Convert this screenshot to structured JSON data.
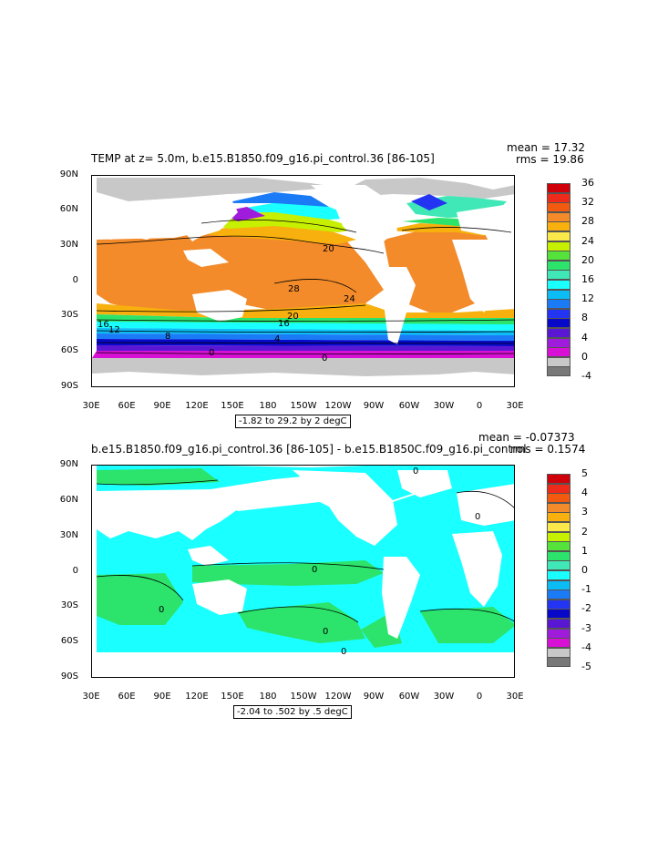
{
  "panels": [
    {
      "id": "top",
      "title": "TEMP at z=    5.0m, b.e15.B1850.f09_g16.pi_control.36 [86-105]",
      "mean_text": "mean = 17.32",
      "rms_text": "rms = 19.86",
      "range_text": "-1.82 to 29.2 by 2 degC",
      "lat_labels": [
        "90N",
        "60N",
        "30N",
        "0",
        "30S",
        "60S",
        "90S"
      ],
      "lon_labels": [
        "30E",
        "60E",
        "90E",
        "120E",
        "150E",
        "180",
        "150W",
        "120W",
        "90W",
        "60W",
        "30W",
        "0",
        "30E"
      ],
      "colorbar_labels": [
        "36",
        "32",
        "28",
        "24",
        "20",
        "16",
        "12",
        "8",
        "4",
        "0",
        "-4"
      ],
      "colorbar_colors": [
        "#d0000a",
        "#ee2a1a",
        "#f25a10",
        "#f38b2a",
        "#f7b00d",
        "#fbe84a",
        "#c7f000",
        "#55e23a",
        "#2ce46b",
        "#3fe8b6",
        "#1affff",
        "#0bbcf5",
        "#1b7bf7",
        "#2335f3",
        "#0808c8",
        "#5a17d3",
        "#a01cdc",
        "#d80fd4",
        "#c8c8c8",
        "#787878"
      ],
      "contour_labels": [
        "20",
        "28",
        "24",
        "20",
        "16",
        "16",
        "12",
        "8",
        "4",
        "0",
        "0"
      ]
    },
    {
      "id": "bottom",
      "title": "b.e15.B1850.f09_g16.pi_control.36 [86-105] - b.e15.B1850C.f09_g16.pi_control",
      "mean_text": "mean = -0.07373",
      "rms_text": "rms = 0.1574",
      "range_text": "-2.04 to .502 by .5 degC",
      "lat_labels": [
        "90N",
        "60N",
        "30N",
        "0",
        "30S",
        "60S",
        "90S"
      ],
      "lon_labels": [
        "30E",
        "60E",
        "90E",
        "120E",
        "150E",
        "180",
        "150W",
        "120W",
        "90W",
        "60W",
        "30W",
        "0",
        "30E"
      ],
      "colorbar_labels": [
        "5",
        "4",
        "3",
        "2",
        "1",
        "0",
        "-1",
        "-2",
        "-3",
        "-4",
        "-5"
      ],
      "colorbar_colors": [
        "#d0000a",
        "#ee2a1a",
        "#f25a10",
        "#f38b2a",
        "#f7b00d",
        "#fbe84a",
        "#c7f000",
        "#55e23a",
        "#2ce46b",
        "#3fe8b6",
        "#1affff",
        "#0bbcf5",
        "#1b7bf7",
        "#2335f3",
        "#0808c8",
        "#5a17d3",
        "#a01cdc",
        "#d80fd4",
        "#c8c8c8",
        "#787878"
      ],
      "contour_labels": [
        "0",
        "0",
        "0",
        "0",
        "0",
        "0"
      ]
    }
  ]
}
